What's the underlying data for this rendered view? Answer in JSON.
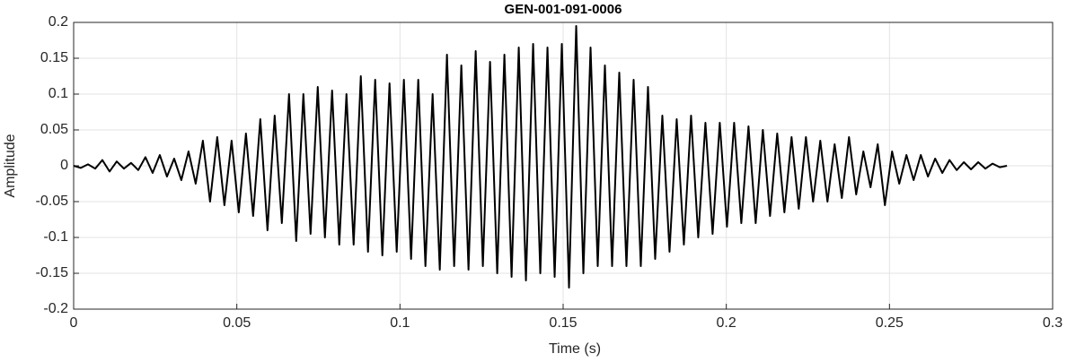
{
  "chart_data": {
    "type": "line",
    "title": "GEN-001-091-0006",
    "x_label": "Time (s)",
    "y_label": "Amplitude",
    "color": "#000000",
    "grid": true,
    "xlim": [
      0,
      0.3
    ],
    "ylim": [
      -0.2,
      0.2
    ],
    "xticks": [
      0,
      0.05,
      0.1,
      0.15,
      0.2,
      0.25,
      0.3
    ],
    "yticks": [
      -0.2,
      -0.15,
      -0.1,
      -0.05,
      0,
      0.05,
      0.1,
      0.15,
      0.2
    ],
    "x": [
      0,
      0.0022,
      0.0044,
      0.0066,
      0.0088,
      0.011,
      0.0132,
      0.0154,
      0.0176,
      0.0198,
      0.022,
      0.0242,
      0.0264,
      0.0286,
      0.0308,
      0.033,
      0.0352,
      0.0374,
      0.0396,
      0.0418,
      0.044,
      0.0462,
      0.0484,
      0.0506,
      0.0528,
      0.055,
      0.0572,
      0.0594,
      0.0616,
      0.0638,
      0.066,
      0.0682,
      0.0704,
      0.0726,
      0.0748,
      0.077,
      0.0792,
      0.0814,
      0.0836,
      0.0858,
      0.088,
      0.0902,
      0.0924,
      0.0946,
      0.0968,
      0.099,
      0.1012,
      0.1034,
      0.1056,
      0.1078,
      0.11,
      0.1122,
      0.1144,
      0.1166,
      0.1188,
      0.121,
      0.1232,
      0.1254,
      0.1276,
      0.1298,
      0.132,
      0.1342,
      0.1364,
      0.1386,
      0.1408,
      0.143,
      0.1452,
      0.1474,
      0.1496,
      0.1518,
      0.154,
      0.1562,
      0.1584,
      0.1606,
      0.1628,
      0.165,
      0.1672,
      0.1694,
      0.1716,
      0.1738,
      0.176,
      0.1782,
      0.1804,
      0.1826,
      0.1848,
      0.187,
      0.1892,
      0.1914,
      0.1936,
      0.1958,
      0.198,
      0.2002,
      0.2024,
      0.2046,
      0.2068,
      0.209,
      0.2112,
      0.2134,
      0.2156,
      0.2178,
      0.22,
      0.2222,
      0.2244,
      0.2266,
      0.2288,
      0.231,
      0.2332,
      0.2354,
      0.2376,
      0.2398,
      0.242,
      0.2442,
      0.2464,
      0.2486,
      0.2508,
      0.253,
      0.2552,
      0.2574,
      0.2596,
      0.2618,
      0.264,
      0.2662,
      0.2684,
      0.2706,
      0.2728,
      0.275,
      0.2772,
      0.2794,
      0.2816,
      0.2838,
      0.286
    ],
    "values": [
      0,
      -0.003,
      0.002,
      -0.004,
      0.008,
      -0.008,
      0.006,
      -0.004,
      0.004,
      -0.006,
      0.012,
      -0.01,
      0.015,
      -0.015,
      0.01,
      -0.02,
      0.02,
      -0.025,
      0.035,
      -0.05,
      0.04,
      -0.055,
      0.035,
      -0.065,
      0.045,
      -0.07,
      0.065,
      -0.09,
      0.07,
      -0.08,
      0.1,
      -0.105,
      0.1,
      -0.095,
      0.11,
      -0.1,
      0.105,
      -0.11,
      0.1,
      -0.11,
      0.125,
      -0.12,
      0.12,
      -0.125,
      0.115,
      -0.12,
      0.12,
      -0.13,
      0.12,
      -0.14,
      0.1,
      -0.145,
      0.155,
      -0.14,
      0.14,
      -0.145,
      0.16,
      -0.14,
      0.145,
      -0.15,
      0.155,
      -0.155,
      0.165,
      -0.16,
      0.17,
      -0.15,
      0.165,
      -0.155,
      0.17,
      -0.17,
      0.195,
      -0.15,
      0.165,
      -0.14,
      0.14,
      -0.14,
      0.13,
      -0.14,
      0.12,
      -0.14,
      0.11,
      -0.13,
      0.07,
      -0.12,
      0.065,
      -0.11,
      0.07,
      -0.1,
      0.06,
      -0.095,
      0.06,
      -0.085,
      0.06,
      -0.08,
      0.055,
      -0.08,
      0.05,
      -0.07,
      0.045,
      -0.065,
      0.04,
      -0.06,
      0.04,
      -0.05,
      0.035,
      -0.05,
      0.03,
      -0.045,
      0.04,
      -0.04,
      0.02,
      -0.03,
      0.03,
      -0.055,
      0.02,
      -0.025,
      0.015,
      -0.02,
      0.015,
      -0.015,
      0.01,
      -0.01,
      0.008,
      -0.006,
      0.005,
      -0.005,
      0.005,
      -0.004,
      0.003,
      -0.002,
      0
    ]
  }
}
